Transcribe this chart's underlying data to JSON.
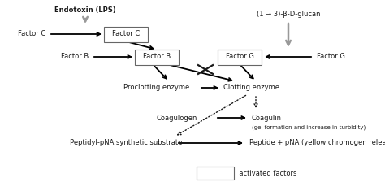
{
  "bg_color": "#ffffff",
  "text_color": "#1a1a1a",
  "gray_color": "#999999",
  "box_edge_color": "#666666",
  "labels": {
    "endotoxin": "Endotoxin (LPS)",
    "glucan": "(1 → 3)-β-D-glucan",
    "factor_c_inactive": "Factor C",
    "factor_c_active": "Factor C",
    "factor_b_inactive": "Factor B",
    "factor_b_active": "Factor B",
    "factor_g_inactive": "Factor G",
    "factor_g_active": "Factor G",
    "proclotting": "Proclotting enzyme",
    "clotting": "Clotting enzyme",
    "coagulogen": "Coagulogen",
    "coagulin": "Coagulin",
    "coagulin_sub": "(gel formation and increase in turbidity)",
    "peptidyl": "Peptidyl-pNA synthetic substrate",
    "peptide": "Peptide + pNA (yellow chromogen release)",
    "legend": ": activated factors"
  },
  "font_size": 6.0,
  "font_size_sub": 5.0,
  "arrow_lw": 1.3,
  "gray_arrow_lw": 1.8,
  "dotted_lw": 1.0
}
